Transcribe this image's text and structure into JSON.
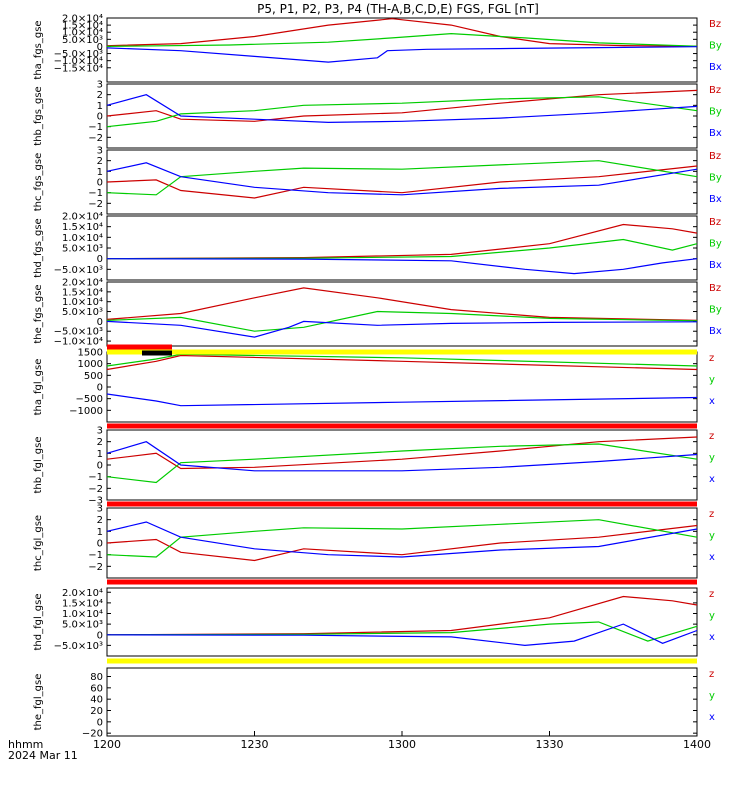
{
  "title": "P5, P1, P2, P3, P4 (TH-A,B,C,D,E) FGS, FGL [nT]",
  "time_axis": {
    "unit_label": "hhmm",
    "date_label": "2024 Mar 11",
    "range": [
      "12:00",
      "14:00"
    ],
    "tick_labels": [
      "1200",
      "1230",
      "1300",
      "1330",
      "1400"
    ]
  },
  "colors": {
    "x": "#0000ff",
    "y": "#00cc00",
    "z": "#cc0000",
    "bar_red": "#ff0000",
    "bar_yellow": "#ffff00",
    "bar_black": "#000000"
  },
  "chart_data": [
    {
      "type": "line",
      "ylabel": "tha_fgs_gse",
      "ylim": [
        -25000,
        20000
      ],
      "ytick_labels": [
        "2.0×10⁴",
        "1.5×10⁴",
        "1.0×10⁴",
        "5.0×10³",
        "0",
        "−5.0×10³",
        "−1.0×10⁴",
        "−1.5×10⁴"
      ],
      "yticks": [
        20000,
        15000,
        10000,
        5000,
        0,
        -5000,
        -10000,
        -15000
      ],
      "legend": [
        "Bz",
        "By",
        "Bx"
      ],
      "series": [
        {
          "name": "Bz",
          "color": "z",
          "x": [
            "12:00",
            "12:15",
            "12:30",
            "12:45",
            "12:58",
            "13:10",
            "13:20",
            "13:30",
            "13:45",
            "14:00"
          ],
          "values": [
            500,
            2000,
            7000,
            15000,
            19500,
            15000,
            7000,
            2000,
            600,
            200
          ]
        },
        {
          "name": "By",
          "color": "y",
          "x": [
            "12:00",
            "12:25",
            "12:45",
            "12:58",
            "13:10",
            "13:25",
            "13:40",
            "14:00"
          ],
          "values": [
            0,
            1000,
            3000,
            6000,
            9000,
            6000,
            2500,
            200
          ]
        },
        {
          "name": "Bx",
          "color": "x",
          "x": [
            "12:00",
            "12:15",
            "12:30",
            "12:45",
            "12:55",
            "12:57",
            "13:05",
            "13:20",
            "13:40",
            "14:00"
          ],
          "values": [
            -1000,
            -3000,
            -7000,
            -11000,
            -8000,
            -3000,
            -2000,
            -1500,
            -800,
            -200
          ]
        }
      ]
    },
    {
      "type": "line",
      "ylabel": "thb_fgs_gse",
      "ylim": [
        -3,
        3
      ],
      "ytick_labels": [
        "3",
        "2",
        "1",
        "0",
        "−1",
        "−2"
      ],
      "yticks": [
        3,
        2,
        1,
        0,
        -1,
        -2
      ],
      "legend": [
        "Bz",
        "By",
        "Bx"
      ],
      "series": [
        {
          "name": "Bz",
          "color": "z",
          "x": [
            "12:00",
            "12:10",
            "12:15",
            "12:30",
            "12:40",
            "13:00",
            "13:20",
            "13:40",
            "14:00"
          ],
          "values": [
            0,
            0.5,
            -0.3,
            -0.5,
            0,
            0.3,
            1.2,
            2.0,
            2.4
          ]
        },
        {
          "name": "By",
          "color": "y",
          "x": [
            "12:00",
            "12:10",
            "12:15",
            "12:30",
            "12:40",
            "13:00",
            "13:20",
            "13:40",
            "14:00"
          ],
          "values": [
            -1.0,
            -0.5,
            0.2,
            0.5,
            1.0,
            1.2,
            1.6,
            1.8,
            0.5
          ]
        },
        {
          "name": "Bx",
          "color": "x",
          "x": [
            "12:00",
            "12:08",
            "12:15",
            "12:30",
            "12:45",
            "13:00",
            "13:20",
            "13:40",
            "14:00"
          ],
          "values": [
            1.0,
            2.0,
            0.0,
            -0.3,
            -0.6,
            -0.5,
            -0.2,
            0.3,
            0.9
          ]
        }
      ]
    },
    {
      "type": "line",
      "ylabel": "thc_fgs_gse",
      "ylim": [
        -3,
        3
      ],
      "ytick_labels": [
        "3",
        "2",
        "1",
        "0",
        "−1",
        "−2"
      ],
      "yticks": [
        3,
        2,
        1,
        0,
        -1,
        -2
      ],
      "legend": [
        "Bz",
        "By",
        "Bx"
      ],
      "series": [
        {
          "name": "Bz",
          "color": "z",
          "x": [
            "12:00",
            "12:10",
            "12:15",
            "12:30",
            "12:40",
            "13:00",
            "13:20",
            "13:40",
            "14:00"
          ],
          "values": [
            0,
            0.2,
            -0.8,
            -1.5,
            -0.5,
            -1.0,
            0,
            0.5,
            1.5
          ]
        },
        {
          "name": "By",
          "color": "y",
          "x": [
            "12:00",
            "12:10",
            "12:15",
            "12:30",
            "12:40",
            "13:00",
            "13:20",
            "13:40",
            "14:00"
          ],
          "values": [
            -1.0,
            -1.2,
            0.5,
            1.0,
            1.3,
            1.2,
            1.6,
            2.0,
            0.5
          ]
        },
        {
          "name": "Bx",
          "color": "x",
          "x": [
            "12:00",
            "12:08",
            "12:15",
            "12:30",
            "12:45",
            "13:00",
            "13:20",
            "13:40",
            "14:00"
          ],
          "values": [
            1.0,
            1.8,
            0.5,
            -0.5,
            -1.0,
            -1.2,
            -0.6,
            -0.3,
            1.2
          ]
        }
      ]
    },
    {
      "type": "line",
      "ylabel": "thd_fgs_gse",
      "ylim": [
        -10000,
        20000
      ],
      "ytick_labels": [
        "2.0×10⁴",
        "1.5×10⁴",
        "1.0×10⁴",
        "5.0×10³",
        "0",
        "−5.0×10³"
      ],
      "yticks": [
        20000,
        15000,
        10000,
        5000,
        0,
        -5000
      ],
      "legend": [
        "Bz",
        "By",
        "Bx"
      ],
      "series": [
        {
          "name": "Bz",
          "color": "z",
          "x": [
            "12:00",
            "12:40",
            "13:10",
            "13:30",
            "13:45",
            "13:55",
            "14:00"
          ],
          "values": [
            0,
            500,
            2000,
            7000,
            16000,
            14000,
            12000
          ]
        },
        {
          "name": "By",
          "color": "y",
          "x": [
            "12:00",
            "12:40",
            "13:10",
            "13:30",
            "13:45",
            "13:55",
            "14:00"
          ],
          "values": [
            0,
            200,
            1000,
            5000,
            9000,
            4000,
            7000
          ]
        },
        {
          "name": "Bx",
          "color": "x",
          "x": [
            "12:00",
            "12:40",
            "13:10",
            "13:25",
            "13:35",
            "13:45",
            "13:53",
            "14:00"
          ],
          "values": [
            0,
            -200,
            -1000,
            -5000,
            -7000,
            -5000,
            -2000,
            0
          ]
        }
      ]
    },
    {
      "type": "line",
      "ylabel": "the_fgs_gse",
      "ylim": [
        -12500,
        20000
      ],
      "ytick_labels": [
        "2.0×10⁴",
        "1.5×10⁴",
        "1.0×10⁴",
        "5.0×10³",
        "0",
        "−5.0×10³",
        "−1.0×10⁴"
      ],
      "yticks": [
        20000,
        15000,
        10000,
        5000,
        0,
        -5000,
        -10000
      ],
      "legend": [
        "Bz",
        "By",
        "Bx"
      ],
      "series": [
        {
          "name": "Bz",
          "color": "z",
          "x": [
            "12:00",
            "12:15",
            "12:30",
            "12:40",
            "12:55",
            "13:10",
            "13:30",
            "14:00"
          ],
          "values": [
            1000,
            4000,
            12000,
            17000,
            12000,
            6000,
            2000,
            500
          ]
        },
        {
          "name": "By",
          "color": "y",
          "x": [
            "12:00",
            "12:15",
            "12:30",
            "12:40",
            "12:55",
            "13:10",
            "13:30",
            "14:00"
          ],
          "values": [
            500,
            2000,
            -5000,
            -3000,
            5000,
            4000,
            1500,
            300
          ]
        },
        {
          "name": "Bx",
          "color": "x",
          "x": [
            "12:00",
            "12:15",
            "12:30",
            "12:37",
            "12:40",
            "12:55",
            "13:10",
            "13:30",
            "14:00"
          ],
          "values": [
            0,
            -2000,
            -8000,
            -3000,
            0,
            -2000,
            -1000,
            -500,
            -200
          ]
        }
      ]
    },
    {
      "type": "line",
      "ylabel": "tha_fgl_gse",
      "ylim": [
        -1500,
        1500
      ],
      "ytick_labels": [
        "1500",
        "1000",
        "500",
        "0",
        "−500",
        "−1000"
      ],
      "yticks": [
        1500,
        1000,
        500,
        0,
        -500,
        -1000
      ],
      "legend": [
        "z",
        "y",
        "x"
      ],
      "series": [
        {
          "name": "z",
          "color": "z",
          "x": [
            "12:00",
            "12:10",
            "12:15",
            "13:00",
            "14:00"
          ],
          "values": [
            750,
            1100,
            1350,
            1100,
            750
          ]
        },
        {
          "name": "y",
          "color": "y",
          "x": [
            "12:00",
            "12:10",
            "12:15",
            "13:00",
            "14:00"
          ],
          "values": [
            900,
            1200,
            1400,
            1250,
            900
          ]
        },
        {
          "name": "x",
          "color": "x",
          "x": [
            "12:00",
            "12:10",
            "12:15",
            "13:00",
            "14:00"
          ],
          "values": [
            -300,
            -600,
            -800,
            -650,
            -450
          ]
        }
      ]
    },
    {
      "type": "line",
      "ylabel": "thb_fgl_gse",
      "ylim": [
        -3,
        3
      ],
      "ytick_labels": [
        "3",
        "2",
        "1",
        "0",
        "−1",
        "−2",
        "−3"
      ],
      "yticks": [
        3,
        2,
        1,
        0,
        -1,
        -2,
        -3
      ],
      "legend": [
        "z",
        "y",
        "x"
      ],
      "series": [
        {
          "name": "z",
          "color": "z",
          "x": [
            "12:00",
            "12:10",
            "12:15",
            "12:30",
            "13:00",
            "13:20",
            "13:40",
            "14:00"
          ],
          "values": [
            0.5,
            1.0,
            -0.3,
            -0.2,
            0.5,
            1.2,
            2.0,
            2.4
          ]
        },
        {
          "name": "y",
          "color": "y",
          "x": [
            "12:00",
            "12:10",
            "12:15",
            "12:30",
            "13:00",
            "13:20",
            "13:40",
            "14:00"
          ],
          "values": [
            -1.0,
            -1.5,
            0.2,
            0.5,
            1.2,
            1.6,
            1.8,
            0.5
          ]
        },
        {
          "name": "x",
          "color": "x",
          "x": [
            "12:00",
            "12:08",
            "12:15",
            "12:30",
            "13:00",
            "13:20",
            "13:40",
            "14:00"
          ],
          "values": [
            1.0,
            2.0,
            0.0,
            -0.5,
            -0.5,
            -0.2,
            0.3,
            0.9
          ]
        }
      ]
    },
    {
      "type": "line",
      "ylabel": "thc_fgl_gse",
      "ylim": [
        -3,
        3
      ],
      "ytick_labels": [
        "3",
        "2",
        "1",
        "0",
        "−1",
        "−2"
      ],
      "yticks": [
        3,
        2,
        1,
        0,
        -1,
        -2
      ],
      "legend": [
        "z",
        "y",
        "x"
      ],
      "series": [
        {
          "name": "z",
          "color": "z",
          "x": [
            "12:00",
            "12:10",
            "12:15",
            "12:30",
            "12:40",
            "13:00",
            "13:20",
            "13:40",
            "14:00"
          ],
          "values": [
            0,
            0.3,
            -0.8,
            -1.5,
            -0.5,
            -1.0,
            0,
            0.5,
            1.5
          ]
        },
        {
          "name": "y",
          "color": "y",
          "x": [
            "12:00",
            "12:10",
            "12:15",
            "12:30",
            "12:40",
            "13:00",
            "13:20",
            "13:40",
            "14:00"
          ],
          "values": [
            -1.0,
            -1.2,
            0.5,
            1.0,
            1.3,
            1.2,
            1.6,
            2.0,
            0.5
          ]
        },
        {
          "name": "x",
          "color": "x",
          "x": [
            "12:00",
            "12:08",
            "12:15",
            "12:30",
            "12:45",
            "13:00",
            "13:20",
            "13:40",
            "14:00"
          ],
          "values": [
            1.0,
            1.8,
            0.5,
            -0.5,
            -1.0,
            -1.2,
            -0.6,
            -0.3,
            1.2
          ]
        }
      ]
    },
    {
      "type": "line",
      "ylabel": "thd_fgl_gse",
      "ylim": [
        -10000,
        22000
      ],
      "ytick_labels": [
        "2.0×10⁴",
        "1.5×10⁴",
        "1.0×10⁴",
        "5.0×10³",
        "0",
        "−5.0×10³"
      ],
      "yticks": [
        20000,
        15000,
        10000,
        5000,
        0,
        -5000
      ],
      "legend": [
        "z",
        "y",
        "x"
      ],
      "series": [
        {
          "name": "z",
          "color": "z",
          "x": [
            "12:00",
            "12:40",
            "13:10",
            "13:30",
            "13:45",
            "13:55",
            "14:00"
          ],
          "values": [
            0,
            500,
            2000,
            8000,
            18000,
            16000,
            14000
          ]
        },
        {
          "name": "y",
          "color": "y",
          "x": [
            "12:00",
            "12:40",
            "13:10",
            "13:30",
            "13:40",
            "13:50",
            "14:00"
          ],
          "values": [
            0,
            200,
            1000,
            5000,
            6000,
            -3000,
            4000
          ]
        },
        {
          "name": "x",
          "color": "x",
          "x": [
            "12:00",
            "12:40",
            "13:10",
            "13:25",
            "13:35",
            "13:45",
            "13:53",
            "14:00"
          ],
          "values": [
            0,
            -200,
            -1000,
            -5000,
            -3000,
            5000,
            -4000,
            2000
          ]
        }
      ]
    },
    {
      "type": "line",
      "ylabel": "the_fgl_gse",
      "ylim": [
        -25,
        95
      ],
      "ytick_labels": [
        "80",
        "60",
        "40",
        "20",
        "0",
        "−20"
      ],
      "yticks": [
        80,
        60,
        40,
        20,
        0,
        -20
      ],
      "legend": [
        "z",
        "y",
        "x"
      ],
      "series": []
    }
  ]
}
